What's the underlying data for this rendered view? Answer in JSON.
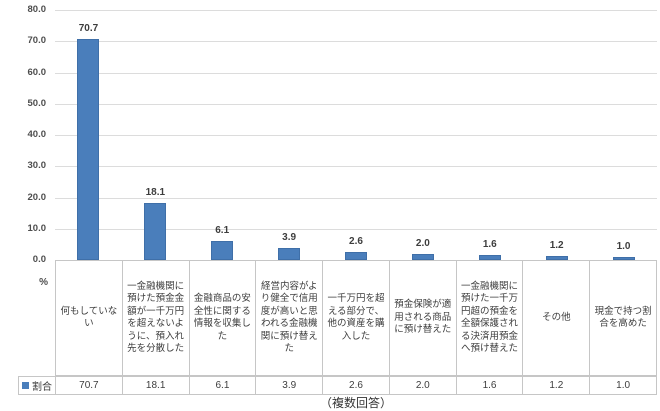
{
  "chart_data": {
    "type": "bar",
    "title": "",
    "series_name": "割合",
    "legend_swatch_icon": "blue-square",
    "categories": [
      "何もしていない",
      "一金融機関に預けた預金金額が一千万円を超えないように、預入れ先を分散した",
      "金融商品の安全性に関する情報を収集した",
      "経営内容がより健全で信用度が高いと思われる金融機関に預け替えた",
      "一千万円を超える部分で、他の資産を購入した",
      "預金保険が適用される商品に預け替えた",
      "一金融機関に預けた一千万円超の預金を全額保護される決済用預金へ預け替えた",
      "その他",
      "現金で持つ割合を高めた"
    ],
    "values": [
      70.7,
      18.1,
      6.1,
      3.9,
      2.6,
      2.0,
      1.6,
      1.2,
      1.0
    ],
    "y_tick_labels": [
      "0.0",
      "10.0",
      "20.0",
      "30.0",
      "40.0",
      "50.0",
      "60.0",
      "70.0",
      "80.0"
    ],
    "ylim": [
      0,
      80
    ],
    "y_unit": "%",
    "note": "（複数回答）",
    "grid": true,
    "legend_position": "bottom-data-table",
    "bar_color": "#4a7ebb",
    "gridline_color": "#dcdcdc",
    "xlabel": "",
    "ylabel": ""
  }
}
